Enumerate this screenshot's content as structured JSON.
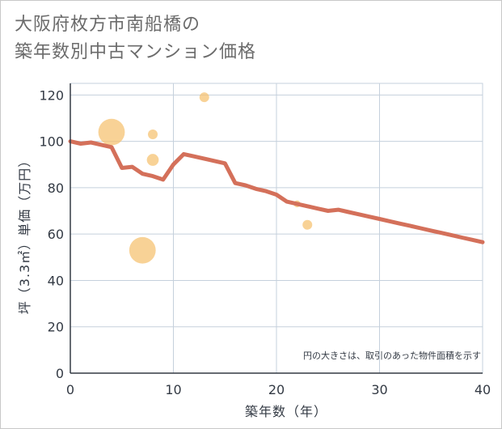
{
  "title": {
    "line1": "大阪府枚方市南船橋の",
    "line2": "築年数別中古マンション価格"
  },
  "chart_data": {
    "type": "scatter",
    "xlabel": "築年数（年）",
    "ylabel": "坪（3.3㎡）単価（万円）",
    "xlim": [
      0,
      40
    ],
    "ylim": [
      0,
      125
    ],
    "xticks": [
      0,
      10,
      20,
      30,
      40
    ],
    "yticks": [
      0,
      20,
      40,
      60,
      80,
      100,
      120
    ],
    "xtick_labels": [
      "0",
      "10",
      "20",
      "30",
      "40"
    ],
    "ytick_labels": [
      "0",
      "20",
      "40",
      "60",
      "80",
      "100",
      "120"
    ],
    "note": "円の大きさは、取引のあった物件面積を示す",
    "colors": {
      "line": "#d4705a",
      "bubble": "#f5c06e",
      "grid": "#c5d0dc"
    },
    "points": [
      {
        "x": 4,
        "y": 104,
        "size": 3
      },
      {
        "x": 7,
        "y": 53,
        "size": 3
      },
      {
        "x": 8,
        "y": 103,
        "size": 1
      },
      {
        "x": 8,
        "y": 92,
        "size": 1.5
      },
      {
        "x": 13,
        "y": 119,
        "size": 1
      },
      {
        "x": 22,
        "y": 73,
        "size": 0.5
      },
      {
        "x": 23,
        "y": 64,
        "size": 1
      }
    ],
    "trend": {
      "x": [
        0,
        1,
        2,
        3,
        4,
        5,
        6,
        7,
        8,
        9,
        10,
        11,
        12,
        13,
        14,
        15,
        16,
        17,
        18,
        19,
        20,
        21,
        22,
        23,
        24,
        25,
        26,
        27,
        28,
        29,
        30,
        31,
        32,
        33,
        34,
        35,
        36,
        37,
        38,
        39,
        40
      ],
      "y": [
        100,
        99,
        99.5,
        98.5,
        97.5,
        88.5,
        89,
        86,
        85,
        83.5,
        90,
        94.5,
        93.5,
        92.5,
        91.5,
        90.5,
        82,
        81,
        79.5,
        78.5,
        77,
        74,
        73,
        72,
        71,
        70,
        70.5,
        69.5,
        68.5,
        67.5,
        66.5,
        65.5,
        64.5,
        63.5,
        62.5,
        61.5,
        60.5,
        59.5,
        58.5,
        57.5,
        56.5
      ]
    }
  }
}
